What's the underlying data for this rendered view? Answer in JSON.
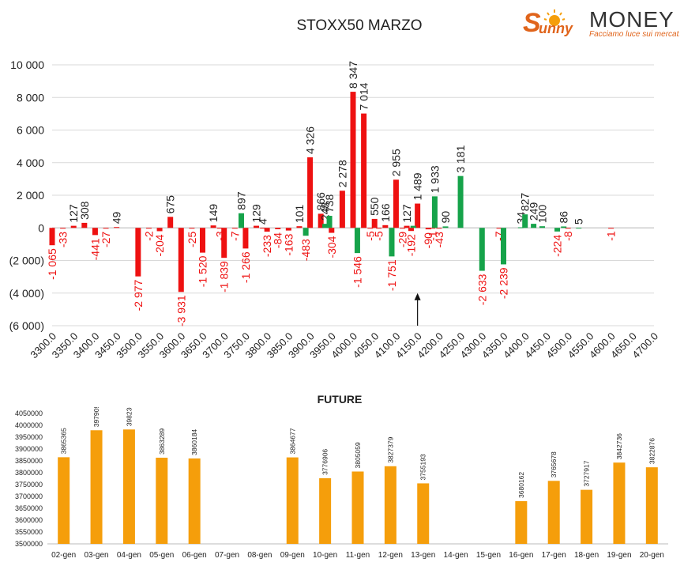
{
  "logo": {
    "brand_word": "unny",
    "brand_name": "MONEY",
    "tagline": "Facciamo luce sui mercati"
  },
  "colors": {
    "positive": "#16a34a",
    "negative": "#ee1111",
    "future_bar": "#f59e0b",
    "text": "#222222",
    "orange": "#f08c14"
  },
  "chart_data": [
    {
      "type": "bar",
      "title": "STOXX50 MARZO",
      "xlabel": "",
      "ylabel": "",
      "ylim": [
        -6000,
        10000
      ],
      "y_ticks": [
        {
          "value": 10000,
          "label": "10 000"
        },
        {
          "value": 8000,
          "label": "8 000"
        },
        {
          "value": 6000,
          "label": "6 000"
        },
        {
          "value": 4000,
          "label": "4 000"
        },
        {
          "value": 2000,
          "label": "2 000"
        },
        {
          "value": 0,
          "label": "0"
        },
        {
          "value": -2000,
          "label": "(2 000)"
        },
        {
          "value": -4000,
          "label": "(4 000)"
        },
        {
          "value": -6000,
          "label": "(6 000)"
        }
      ],
      "categories": [
        "3300.0",
        "3350.0",
        "3400.0",
        "3450.0",
        "3500.0",
        "3550.0",
        "3600.0",
        "3650.0",
        "3700.0",
        "3750.0",
        "3800.0",
        "3850.0",
        "3900.0",
        "3950.0",
        "4000.0",
        "4050.0",
        "4100.0",
        "4150.0",
        "4200.0",
        "4250.0",
        "4300.0",
        "4350.0",
        "4400.0",
        "4450.0",
        "4500.0",
        "4550.0",
        "4600.0",
        "4650.0",
        "4700.0"
      ],
      "series": [
        {
          "color": "#ee1111",
          "values": [
            {
              "x": 3300,
              "value": -1065,
              "label": "-1 065"
            },
            {
              "x": 3325,
              "value": -33,
              "label": "-33"
            },
            {
              "x": 3350,
              "value": 127,
              "label": "127"
            },
            {
              "x": 3375,
              "value": 308,
              "label": "308"
            },
            {
              "x": 3400,
              "value": -441,
              "label": "-441"
            },
            {
              "x": 3425,
              "value": -27,
              "label": "-27"
            },
            {
              "x": 3450,
              "value": 49,
              "label": "49"
            },
            {
              "x": 3500,
              "value": -2977,
              "label": "-2 977"
            },
            {
              "x": 3525,
              "value": -2,
              "label": "-2"
            },
            {
              "x": 3550,
              "value": -204,
              "label": "-204"
            },
            {
              "x": 3575,
              "value": 675,
              "label": "675"
            },
            {
              "x": 3600,
              "value": -3931,
              "label": "-3 931"
            },
            {
              "x": 3625,
              "value": -25,
              "label": "-25"
            },
            {
              "x": 3650,
              "value": -1520,
              "label": "-1 520"
            },
            {
              "x": 3675,
              "value": 149,
              "label": "149"
            },
            {
              "x": 3690,
              "value": -3,
              "label": "-3"
            },
            {
              "x": 3700,
              "value": -1839,
              "label": "-1 839"
            },
            {
              "x": 3725,
              "value": -7,
              "label": "-7"
            },
            {
              "x": 3750,
              "value": -1266,
              "label": "-1 266"
            },
            {
              "x": 3775,
              "value": 129,
              "label": "129"
            },
            {
              "x": 3790,
              "value": 4,
              "label": "4"
            },
            {
              "x": 3800,
              "value": -233,
              "label": "-233"
            },
            {
              "x": 3825,
              "value": -84,
              "label": "-84"
            },
            {
              "x": 3850,
              "value": -163,
              "label": "-163"
            },
            {
              "x": 3875,
              "value": 101,
              "label": "101"
            },
            {
              "x": 3900,
              "value": 4326,
              "label": "4 326"
            },
            {
              "x": 3925,
              "value": 866,
              "label": "866"
            },
            {
              "x": 3950,
              "value": -304,
              "label": "-304"
            },
            {
              "x": 3975,
              "value": 2278,
              "label": "2 278"
            },
            {
              "x": 4000,
              "value": 8347,
              "label": "8 347"
            },
            {
              "x": 4025,
              "value": 7014,
              "label": "7 014"
            },
            {
              "x": 4040,
              "value": -5,
              "label": "-5"
            },
            {
              "x": 4050,
              "value": 550,
              "label": "550"
            },
            {
              "x": 4060,
              "value": -5,
              "label": "-5"
            },
            {
              "x": 4075,
              "value": 166,
              "label": "166"
            },
            {
              "x": 4100,
              "value": 2955,
              "label": "2 955"
            },
            {
              "x": 4115,
              "value": -29,
              "label": "-29"
            },
            {
              "x": 4125,
              "value": 127,
              "label": "127"
            },
            {
              "x": 4135,
              "value": -192,
              "label": "-192"
            },
            {
              "x": 4150,
              "value": 1489,
              "label": "1 489"
            },
            {
              "x": 4175,
              "value": -90,
              "label": "-90"
            },
            {
              "x": 4185,
              "value": -1,
              "label": "-1"
            },
            {
              "x": 4200,
              "value": -43,
              "label": "-43"
            },
            {
              "x": 4340,
              "value": -7,
              "label": "-7"
            },
            {
              "x": 4500,
              "value": -8,
              "label": "-8"
            },
            {
              "x": 4600,
              "value": -1,
              "label": "-1"
            }
          ]
        },
        {
          "color": "#16a34a",
          "values": [
            {
              "x": 3740,
              "value": 897,
              "label": "897"
            },
            {
              "x": 3890,
              "value": -483,
              "label": "-483"
            },
            {
              "x": 3935,
              "value": 248,
              "label": "248"
            },
            {
              "x": 3945,
              "value": 738,
              "label": "738"
            },
            {
              "x": 4010,
              "value": -1546,
              "label": "-1 546"
            },
            {
              "x": 4090,
              "value": -1751,
              "label": "-1 751"
            },
            {
              "x": 4140,
              "value": 127,
              "label": ""
            },
            {
              "x": 4190,
              "value": 1933,
              "label": "1 933"
            },
            {
              "x": 4215,
              "value": 90,
              "label": "90"
            },
            {
              "x": 4250,
              "value": 3181,
              "label": "3 181"
            },
            {
              "x": 4300,
              "value": -2633,
              "label": "-2 633"
            },
            {
              "x": 4350,
              "value": -2239,
              "label": "-2 239"
            },
            {
              "x": 4390,
              "value": 34,
              "label": "34"
            },
            {
              "x": 4400,
              "value": 827,
              "label": "827"
            },
            {
              "x": 4420,
              "value": 249,
              "label": "249"
            },
            {
              "x": 4440,
              "value": 100,
              "label": "100"
            },
            {
              "x": 4475,
              "value": -224,
              "label": "-224"
            },
            {
              "x": 4490,
              "value": 86,
              "label": "86"
            },
            {
              "x": 4525,
              "value": 5,
              "label": "5"
            }
          ]
        }
      ],
      "annotation": {
        "type": "arrow",
        "x": 4150,
        "value_from": -6000,
        "value_to": -4000
      },
      "grid": true,
      "legend": "none"
    },
    {
      "type": "bar",
      "title": "FUTURE",
      "xlabel": "",
      "ylabel": "",
      "ylim": [
        3500000,
        4050000
      ],
      "y_ticks": [
        4050000,
        4000000,
        3950000,
        3900000,
        3850000,
        3800000,
        3750000,
        3700000,
        3650000,
        3600000,
        3550000,
        3500000
      ],
      "categories": [
        "02-gen",
        "03-gen",
        "04-gen",
        "05-gen",
        "06-gen",
        "07-gen",
        "08-gen",
        "09-gen",
        "10-gen",
        "11-gen",
        "12-gen",
        "13-gen",
        "14-gen",
        "15-gen",
        "16-gen",
        "17-gen",
        "18-gen",
        "19-gen",
        "20-gen"
      ],
      "values": [
        3865365,
        3979090,
        3982362,
        3863289,
        3860184,
        null,
        null,
        3864677,
        3776906,
        3805059,
        3827379,
        3755193,
        null,
        null,
        3680162,
        3765678,
        3727917,
        3842736,
        3822876
      ],
      "color": "#f59e0b",
      "grid": false,
      "legend": "none"
    }
  ]
}
